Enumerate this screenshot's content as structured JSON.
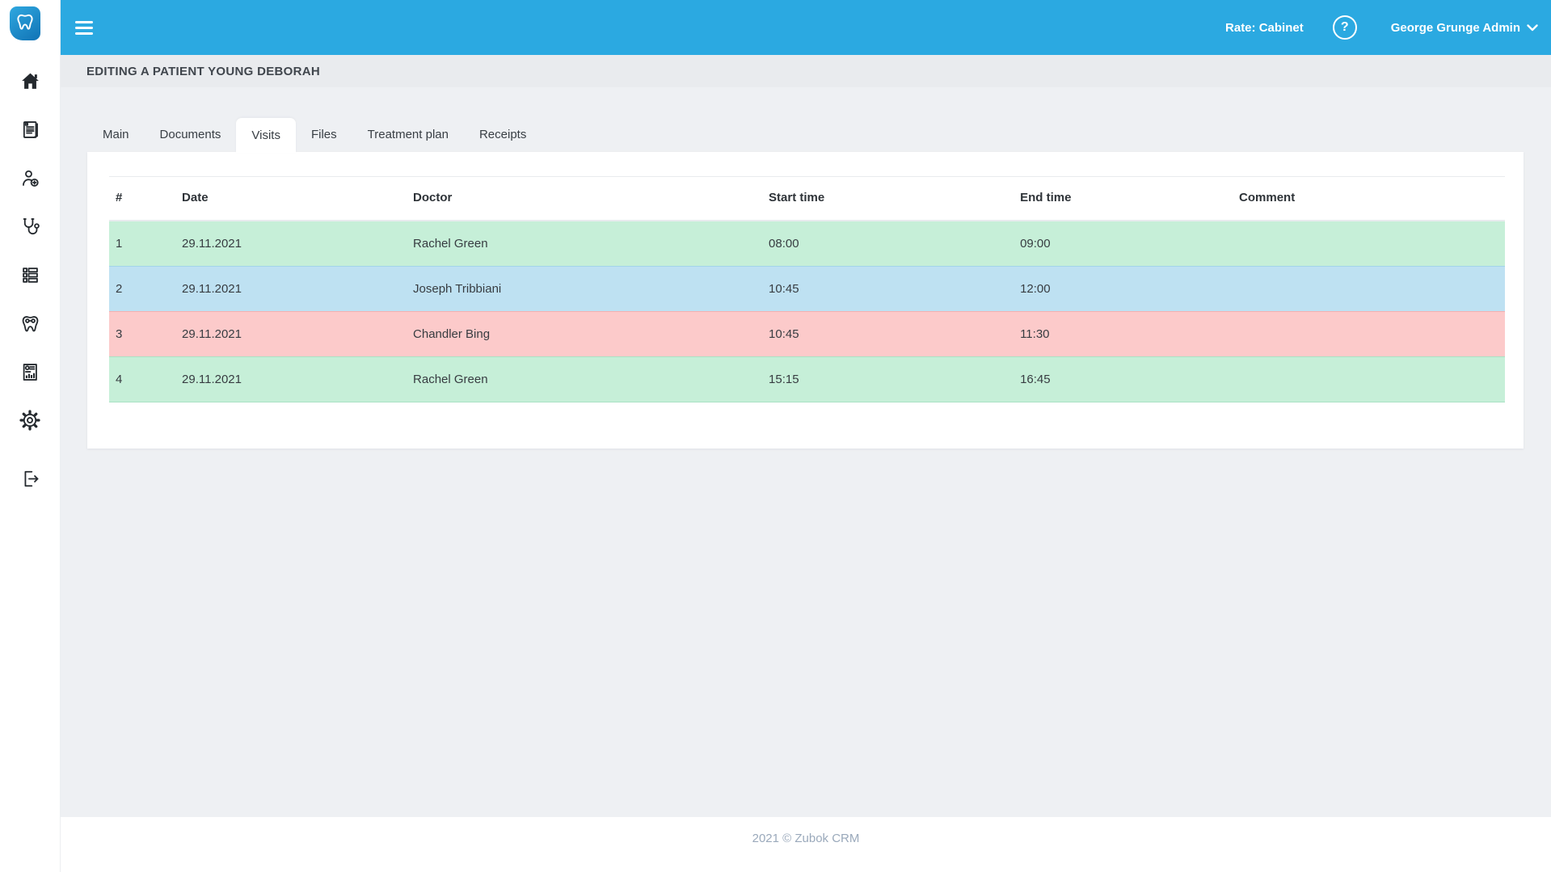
{
  "topbar": {
    "hamburger_icon": "hamburger-icon",
    "rate_label": "Rate: Cabinet",
    "help_icon": "question-mark-icon",
    "user_name": "George Grunge Admin",
    "chevron_icon": "chevron-down-icon",
    "bg_color": "#2ba9e1"
  },
  "sidebar": {
    "logo_icon": "tooth-logo",
    "items": [
      {
        "icon": "home-icon"
      },
      {
        "icon": "journal-icon"
      },
      {
        "icon": "patient-add-icon"
      },
      {
        "icon": "stethoscope-icon"
      },
      {
        "icon": "list-icon"
      },
      {
        "icon": "tooth-icon"
      },
      {
        "icon": "report-icon"
      },
      {
        "icon": "settings-gear-icon"
      },
      {
        "icon": "logout-icon"
      }
    ]
  },
  "page": {
    "heading": "EDITING A PATIENT YOUNG DEBORAH"
  },
  "tabs": {
    "items": [
      {
        "label": "Main",
        "active": false
      },
      {
        "label": "Documents",
        "active": false
      },
      {
        "label": "Visits",
        "active": true
      },
      {
        "label": "Files",
        "active": false
      },
      {
        "label": "Treatment plan",
        "active": false
      },
      {
        "label": "Receipts",
        "active": false
      }
    ]
  },
  "visits_table": {
    "columns": [
      "#",
      "Date",
      "Doctor",
      "Start time",
      "End time",
      "Comment"
    ],
    "rows": [
      {
        "num": "1",
        "date": "29.11.2021",
        "doctor": "Rachel Green",
        "start": "08:00",
        "end": "09:00",
        "comment": "",
        "color": "green"
      },
      {
        "num": "2",
        "date": "29.11.2021",
        "doctor": "Joseph Tribbiani",
        "start": "10:45",
        "end": "12:00",
        "comment": "",
        "color": "blue"
      },
      {
        "num": "3",
        "date": "29.11.2021",
        "doctor": "Chandler Bing",
        "start": "10:45",
        "end": "11:30",
        "comment": "",
        "color": "red"
      },
      {
        "num": "4",
        "date": "29.11.2021",
        "doctor": "Rachel Green",
        "start": "15:15",
        "end": "16:45",
        "comment": "",
        "color": "green"
      }
    ],
    "row_colors": {
      "green": "#c6efd8",
      "blue": "#bee1f2",
      "red": "#fccaca"
    }
  },
  "footer": {
    "text": "2021 © Zubok CRM"
  }
}
